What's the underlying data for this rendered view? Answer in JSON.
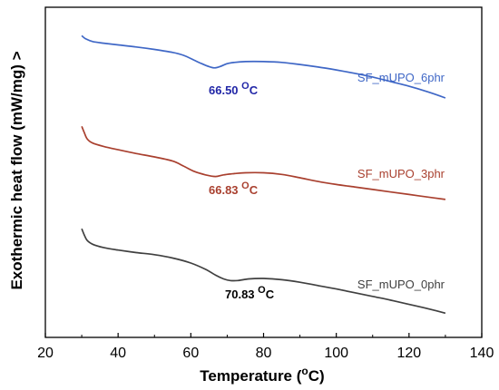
{
  "chart_data": {
    "type": "line",
    "xlabel": "Temperature (",
    "xlabel_sup": "o",
    "xlabel_tail": "C)",
    "ylabel": "Exothermic heat flow (mW/mg) >",
    "xlim": [
      20,
      140
    ],
    "xticks": [
      "20",
      "40",
      "60",
      "80",
      "100",
      "120",
      "140"
    ],
    "grid": false,
    "series": [
      {
        "name": "SF_mUPO_6phr",
        "color": "#3f67c6",
        "x": [
          30,
          31,
          33,
          36,
          40,
          45,
          50,
          55,
          58,
          61,
          63,
          65,
          66.5,
          68,
          70,
          72,
          75,
          80,
          85,
          90,
          95,
          100,
          105,
          110,
          115,
          120,
          125,
          130
        ],
        "y": [
          7.62,
          7.55,
          7.48,
          7.44,
          7.4,
          7.35,
          7.29,
          7.22,
          7.15,
          7.03,
          6.95,
          6.88,
          6.85,
          6.88,
          6.95,
          6.98,
          7.0,
          7.0,
          6.98,
          6.93,
          6.87,
          6.8,
          6.72,
          6.63,
          6.52,
          6.41,
          6.28,
          6.13
        ]
      },
      {
        "name": "SF_mUPO_3phr",
        "color": "#a9402f",
        "x": [
          30,
          30.7,
          31.5,
          33,
          36,
          40,
          45,
          50,
          55,
          58,
          61,
          64,
          66.8,
          69,
          72,
          75,
          80,
          85,
          90,
          95,
          100,
          105,
          110,
          115,
          120,
          125,
          130
        ],
        "y": [
          5.45,
          5.3,
          5.15,
          5.05,
          4.97,
          4.89,
          4.8,
          4.72,
          4.62,
          4.5,
          4.37,
          4.29,
          4.25,
          4.29,
          4.32,
          4.34,
          4.34,
          4.3,
          4.22,
          4.13,
          4.06,
          4.0,
          3.94,
          3.88,
          3.82,
          3.76,
          3.7
        ]
      },
      {
        "name": "SF_mUPO_0phr",
        "color": "#404040",
        "x": [
          30,
          30.7,
          31.5,
          33,
          36,
          40,
          45,
          50,
          55,
          60,
          64,
          67,
          69,
          70.8,
          73,
          76,
          80,
          85,
          90,
          95,
          100,
          105,
          110,
          115,
          120,
          125,
          130
        ],
        "y": [
          3.0,
          2.85,
          2.72,
          2.63,
          2.55,
          2.49,
          2.43,
          2.38,
          2.3,
          2.18,
          2.03,
          1.88,
          1.8,
          1.76,
          1.76,
          1.8,
          1.81,
          1.78,
          1.72,
          1.64,
          1.56,
          1.47,
          1.38,
          1.29,
          1.19,
          1.09,
          0.98
        ]
      }
    ],
    "annotations": [
      {
        "series": "SF_mUPO_6phr",
        "value": "66.50 ",
        "sup": "O",
        "unit": "C",
        "color": "#2126a7"
      },
      {
        "series": "SF_mUPO_3phr",
        "value": "66.83 ",
        "sup": "O",
        "unit": "C",
        "color": "#a9402f"
      },
      {
        "series": "SF_mUPO_0phr",
        "value": "70.83 ",
        "sup": "O",
        "unit": "C",
        "color": "#000000"
      }
    ]
  }
}
